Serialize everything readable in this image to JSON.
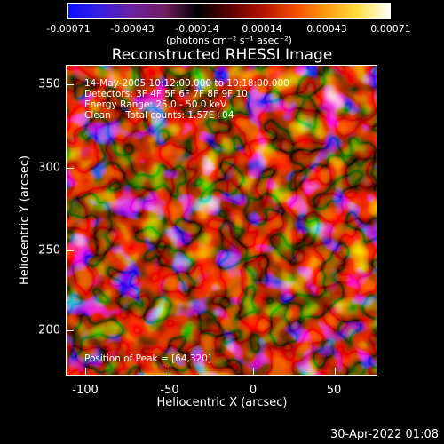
{
  "colorbar": {
    "colors": [
      "#0a10ff",
      "#3a20e0",
      "#6a22a0",
      "#701e60",
      "#000000",
      "#5a0000",
      "#b01000",
      "#f04800",
      "#ff9a10",
      "#ffe040",
      "#ffffff"
    ],
    "ticks": [
      "-0.00071",
      "-0.00043",
      "-0.00014",
      "0.00014",
      "0.00043",
      "0.00071"
    ],
    "units": "(photons cm⁻² s⁻¹ asec⁻²)"
  },
  "title": "Reconstructed RHESSI Image",
  "annotations": {
    "time": "14-May-2005 10:12:00.000 to 10:18:00.000",
    "detectors": "Detectors: 3F 4F 5F 6F 7F 8F 9F 10",
    "energy": "Energy Range: 25.0 - 50.0 keV",
    "clean": "Clean     Total counts: 1.57E+04",
    "peak": "Position of Peak = [64,320]"
  },
  "axes": {
    "xlabel": "Heliocentric X (arcsec)",
    "ylabel": "Heliocentric Y (arcsec)",
    "xticks": [
      "-100",
      "-50",
      "0",
      "50"
    ],
    "yticks": [
      "350",
      "300",
      "250",
      "200"
    ]
  },
  "timestamp": "30-Apr-2022 01:08"
}
